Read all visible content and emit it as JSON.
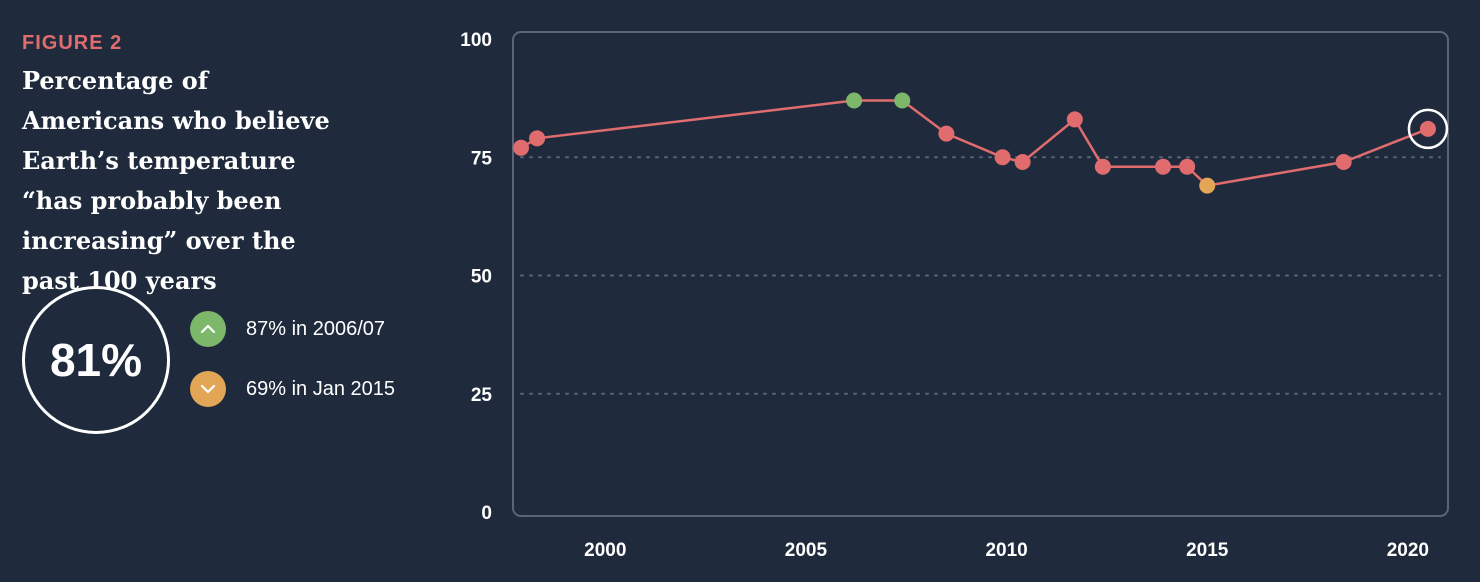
{
  "figure_label": "FIGURE 2",
  "title": "Percentage of Americans who believe Earth’s temperature “has probably been increasing” over the past 100 years",
  "highlight": {
    "value": "81%"
  },
  "stats": [
    {
      "icon": "chevron-up-icon",
      "color": "#7db86a",
      "text": "87% in 2006/07"
    },
    {
      "icon": "chevron-down-icon",
      "color": "#e3a657",
      "text": "69% in Jan 2015"
    }
  ],
  "colors": {
    "background": "#1f2b3d",
    "series": "#e06c6e",
    "high": "#7db86a",
    "low": "#e3a657",
    "frame": "#5b6578",
    "gridline": "#5b6578"
  },
  "chart_data": {
    "type": "line",
    "title": "",
    "xlabel": "",
    "ylabel": "",
    "xlim": [
      1997.7,
      2021.0
    ],
    "ylim": [
      0,
      100
    ],
    "x_ticks": [
      2000,
      2005,
      2010,
      2015,
      2020
    ],
    "y_ticks": [
      0,
      25,
      50,
      75,
      100
    ],
    "grid": "horizontal dotted at 25, 50, 75",
    "series": [
      {
        "points": [
          {
            "x": 1997.9,
            "y": 77,
            "status": "normal"
          },
          {
            "x": 1998.3,
            "y": 79,
            "status": "normal"
          },
          {
            "x": 2006.2,
            "y": 87,
            "status": "high"
          },
          {
            "x": 2007.4,
            "y": 87,
            "status": "high"
          },
          {
            "x": 2008.5,
            "y": 80,
            "status": "normal"
          },
          {
            "x": 2009.9,
            "y": 75,
            "status": "normal"
          },
          {
            "x": 2010.4,
            "y": 74,
            "status": "normal"
          },
          {
            "x": 2011.7,
            "y": 83,
            "status": "normal"
          },
          {
            "x": 2012.4,
            "y": 73,
            "status": "normal"
          },
          {
            "x": 2013.9,
            "y": 73,
            "status": "normal"
          },
          {
            "x": 2014.5,
            "y": 73,
            "status": "normal"
          },
          {
            "x": 2015.0,
            "y": 69,
            "status": "low"
          },
          {
            "x": 2018.4,
            "y": 74,
            "status": "normal"
          },
          {
            "x": 2020.5,
            "y": 81,
            "status": "latest"
          }
        ]
      }
    ]
  }
}
